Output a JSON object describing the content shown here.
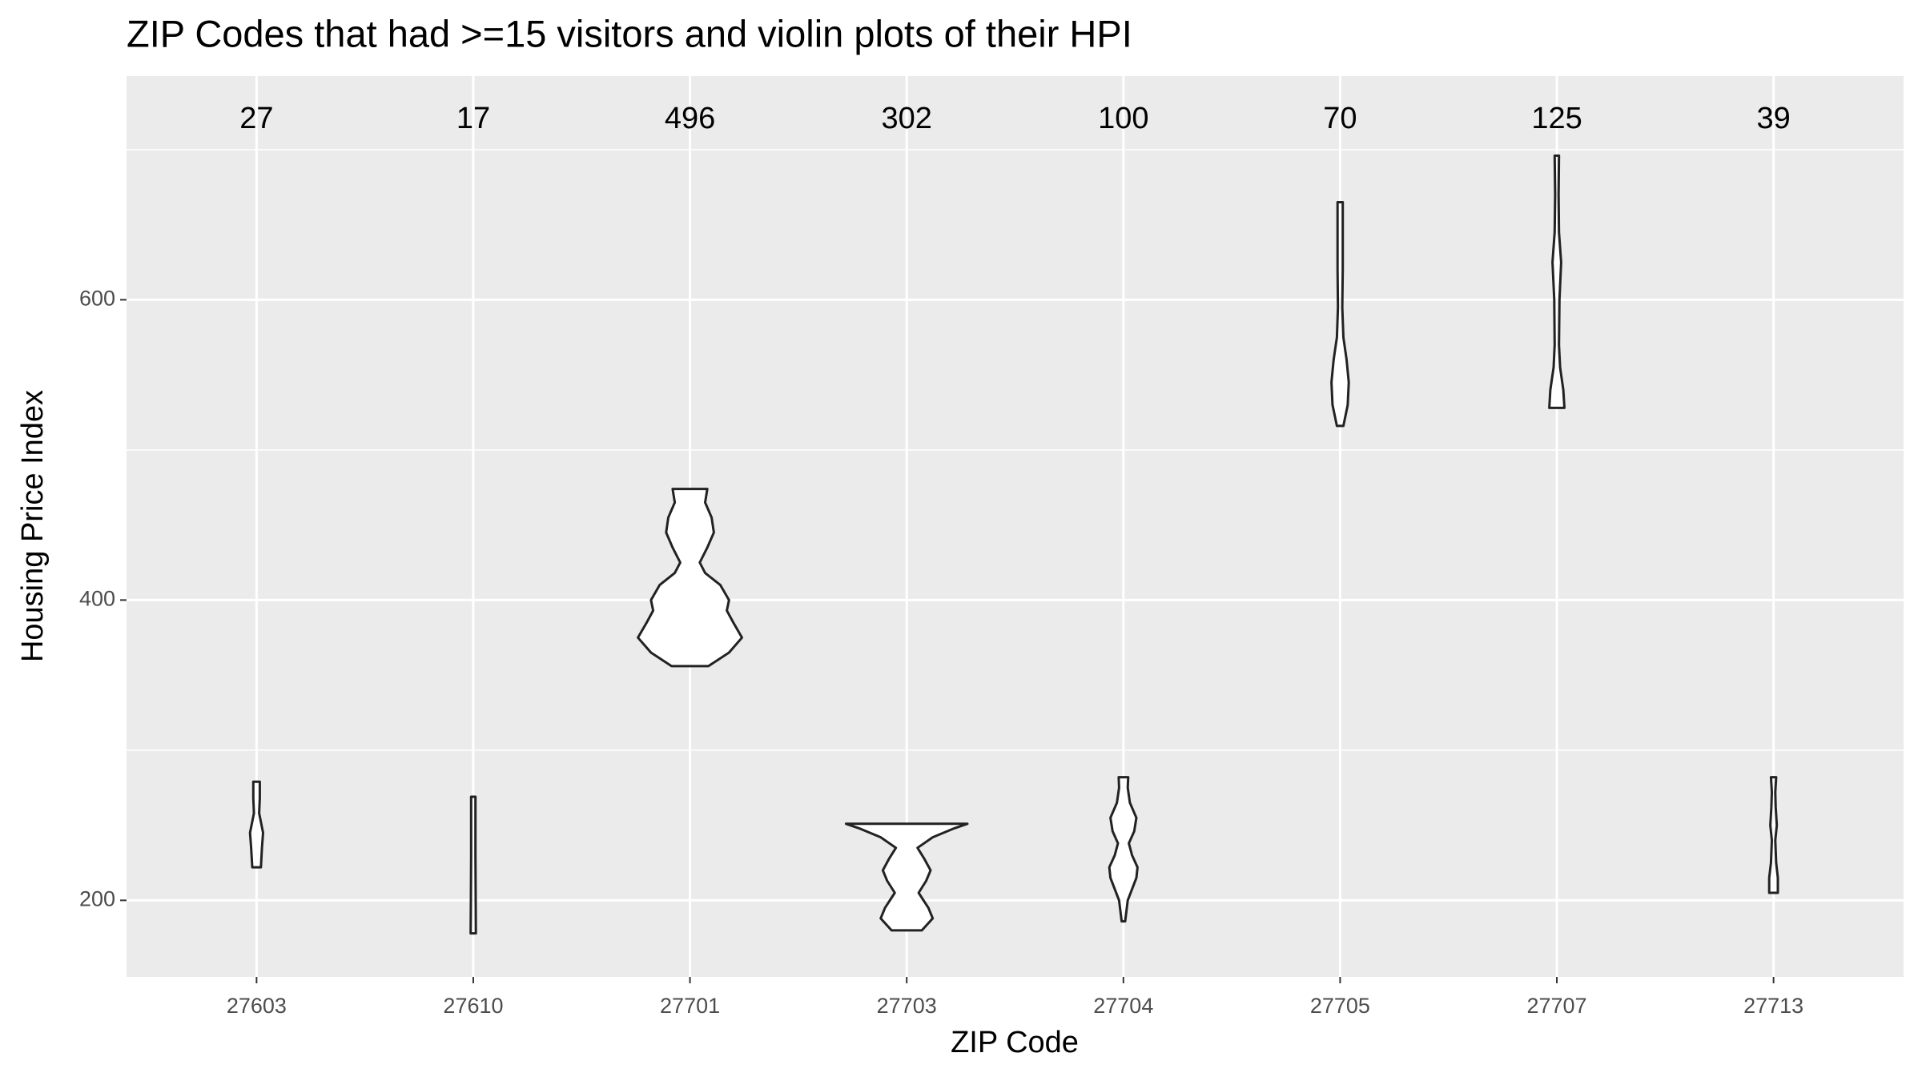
{
  "chart_data": {
    "type": "violin",
    "title": "ZIP Codes that had >=15 visitors and violin plots of their HPI",
    "x_label": "ZIP Code",
    "y_label": "Housing Price Index",
    "ylim": [
      149,
      749
    ],
    "yticks": [
      200,
      400,
      600
    ],
    "minor_grid": [
      300,
      500,
      700
    ],
    "grid": true,
    "color": "#ffffff",
    "stroke": "#222222",
    "series": [
      {
        "name": "27603",
        "count": 27,
        "hpi": [
          222,
          235,
          245,
          258,
          268,
          279
        ],
        "width": [
          0.02,
          0.025,
          0.03,
          0.012,
          0.015,
          0.015
        ]
      },
      {
        "name": "27610",
        "count": 17,
        "hpi": [
          178,
          200,
          230,
          269
        ],
        "width": [
          0.012,
          0.011,
          0.01,
          0.01
        ]
      },
      {
        "name": "27701",
        "count": 496,
        "hpi": [
          356,
          365,
          375,
          385,
          393,
          400,
          410,
          418,
          425,
          435,
          445,
          455,
          465,
          474
        ],
        "width": [
          0.085,
          0.18,
          0.24,
          0.2,
          0.17,
          0.18,
          0.14,
          0.07,
          0.045,
          0.08,
          0.11,
          0.1,
          0.07,
          0.08
        ]
      },
      {
        "name": "27703",
        "count": 302,
        "hpi": [
          180,
          188,
          195,
          205,
          213,
          220,
          228,
          235,
          242,
          248,
          251
        ],
        "width": [
          0.07,
          0.12,
          0.1,
          0.055,
          0.09,
          0.11,
          0.08,
          0.05,
          0.12,
          0.22,
          0.28
        ]
      },
      {
        "name": "27704",
        "count": 100,
        "hpi": [
          186,
          200,
          215,
          222,
          230,
          238,
          246,
          255,
          265,
          275,
          282
        ],
        "width": [
          0.008,
          0.02,
          0.06,
          0.065,
          0.04,
          0.025,
          0.05,
          0.06,
          0.03,
          0.02,
          0.022
        ]
      },
      {
        "name": "27705",
        "count": 70,
        "hpi": [
          516,
          530,
          545,
          560,
          575,
          595,
          620,
          645,
          665
        ],
        "width": [
          0.015,
          0.035,
          0.04,
          0.03,
          0.015,
          0.01,
          0.012,
          0.012,
          0.012
        ]
      },
      {
        "name": "27707",
        "count": 125,
        "hpi": [
          528,
          540,
          555,
          570,
          600,
          625,
          645,
          670,
          696
        ],
        "width": [
          0.035,
          0.03,
          0.015,
          0.01,
          0.012,
          0.02,
          0.01,
          0.008,
          0.01
        ]
      },
      {
        "name": "27713",
        "count": 39,
        "hpi": [
          205,
          215,
          225,
          240,
          250,
          262,
          272,
          282
        ],
        "width": [
          0.02,
          0.02,
          0.012,
          0.008,
          0.015,
          0.01,
          0.008,
          0.012
        ]
      }
    ]
  }
}
